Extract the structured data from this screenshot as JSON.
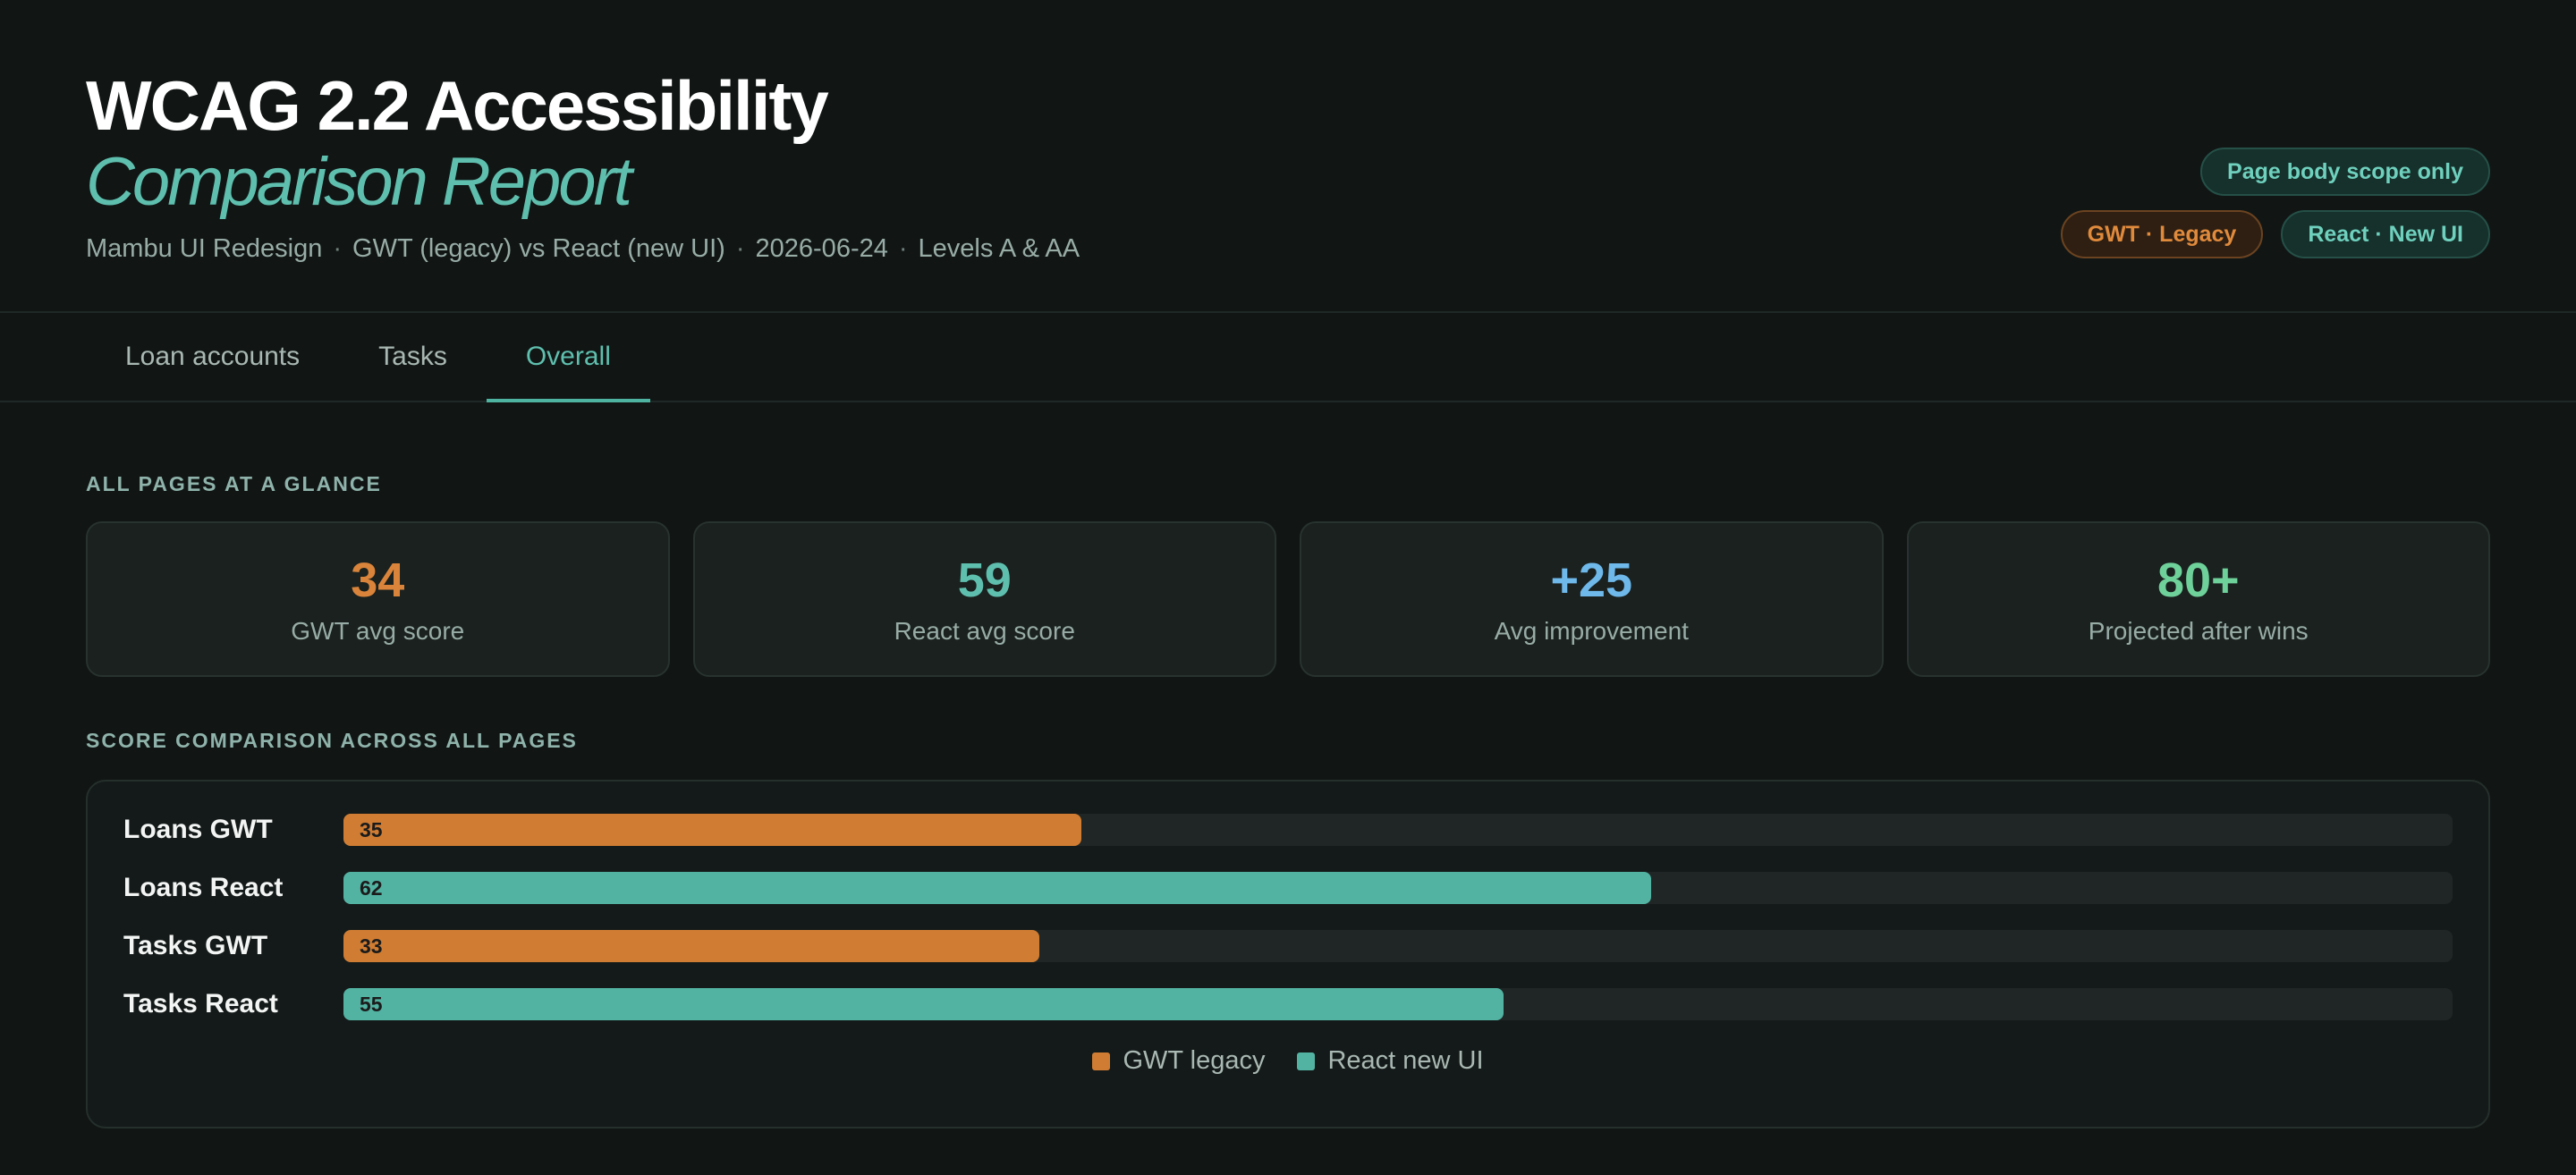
{
  "header": {
    "title": "WCAG 2.2 Accessibility",
    "subtitle": "Comparison Report",
    "meta": [
      "Mambu UI Redesign",
      "GWT (legacy) vs React (new UI)",
      "2026-06-24",
      "Levels A & AA"
    ],
    "meta_separator": "·"
  },
  "badges": {
    "scope": "Page body scope only",
    "gwt": "GWT · Legacy",
    "react": "React · New UI"
  },
  "tabs": [
    {
      "label": "Loan accounts",
      "active": false
    },
    {
      "label": "Tasks",
      "active": false
    },
    {
      "label": "Overall",
      "active": true
    }
  ],
  "glance": {
    "label": "ALL PAGES AT A GLANCE",
    "cards": [
      {
        "value": "34",
        "label": "GWT avg score",
        "color": "#d9843a"
      },
      {
        "value": "59",
        "label": "React avg score",
        "color": "#5fbfae"
      },
      {
        "value": "+25",
        "label": "Avg improvement",
        "color": "#6fb8ea"
      },
      {
        "value": "80+",
        "label": "Projected after wins",
        "color": "#6fd19a"
      }
    ]
  },
  "comparison": {
    "label": "SCORE COMPARISON ACROSS ALL PAGES"
  },
  "chart_data": {
    "type": "bar",
    "orientation": "horizontal",
    "categories": [
      "Loans GWT",
      "Loans React",
      "Tasks GWT",
      "Tasks React"
    ],
    "values": [
      35,
      62,
      33,
      55
    ],
    "series_of_bar": [
      "GWT legacy",
      "React new UI",
      "GWT legacy",
      "React new UI"
    ],
    "xlim": [
      0,
      100
    ],
    "legend": [
      {
        "name": "GWT legacy",
        "color": "#d07d33"
      },
      {
        "name": "React new UI",
        "color": "#52b3a3"
      }
    ],
    "legend_position": "bottom-center",
    "grid": false
  }
}
